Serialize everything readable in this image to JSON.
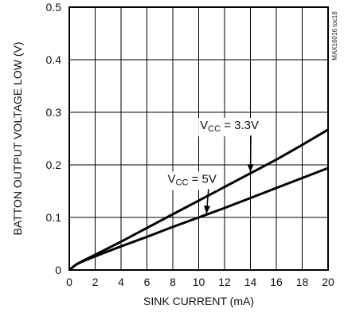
{
  "chart_data": {
    "type": "line",
    "xlabel": "SINK CURRENT (mA)",
    "ylabel": "BATTON OUTPUT VOLTAGE LOW (V)",
    "xlim": [
      0,
      20
    ],
    "ylim": [
      0,
      0.5
    ],
    "xticks": [
      "0",
      "2",
      "4",
      "6",
      "8",
      "10",
      "12",
      "14",
      "16",
      "18",
      "20"
    ],
    "yticks": [
      "0",
      "0.1",
      "0.2",
      "0.3",
      "0.4",
      "0.5"
    ],
    "grid": true,
    "watermark": "MAX16016 toc18",
    "series": [
      {
        "x": [
          0,
          0.5,
          1,
          2,
          4,
          6,
          8,
          10,
          12,
          14,
          16,
          18,
          20
        ],
        "y": [
          0,
          0.01,
          0.017,
          0.029,
          0.054,
          0.08,
          0.106,
          0.132,
          0.158,
          0.184,
          0.21,
          0.238,
          0.267
        ]
      },
      {
        "x": [
          0,
          0.5,
          1,
          2,
          4,
          6,
          8,
          10,
          12,
          14,
          16,
          18,
          20
        ],
        "y": [
          0,
          0.01,
          0.016,
          0.026,
          0.045,
          0.063,
          0.082,
          0.1,
          0.118,
          0.137,
          0.156,
          0.175,
          0.194
        ]
      }
    ],
    "annotations": [
      {
        "main": "V",
        "sub": "CC",
        "rest": " = 3.3V"
      },
      {
        "main": "V",
        "sub": "CC",
        "rest": " = 5V"
      }
    ]
  }
}
